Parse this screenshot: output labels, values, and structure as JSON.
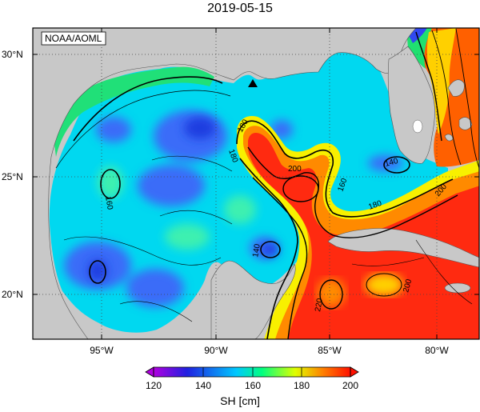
{
  "title": "2019-05-15",
  "credit": "NOAA/AOML",
  "unit_label": "SH [cm]",
  "lat_ticks": [
    "30°N",
    "25°N",
    "20°N"
  ],
  "lon_ticks": [
    "95°W",
    "90°W",
    "85°W",
    "80°W"
  ],
  "colorbar": {
    "ticks": [
      "120",
      "140",
      "160",
      "180",
      "200"
    ],
    "stops": [
      "#b000e0",
      "#2020e0",
      "#00c8ff",
      "#00ff80",
      "#e0ff00",
      "#ff8000",
      "#ff1000"
    ]
  },
  "contour_labels": [
    "180",
    "180",
    "160",
    "200",
    "160",
    "140",
    "180",
    "200",
    "140",
    "220",
    "200"
  ],
  "marker": "triangle",
  "colors": {
    "land": "#c8c8c8",
    "deep_blue": "#3050ff",
    "cyan": "#00d0f0",
    "green": "#20e060",
    "yellow": "#f8f000",
    "orange": "#ff8000",
    "red": "#ff2000"
  }
}
